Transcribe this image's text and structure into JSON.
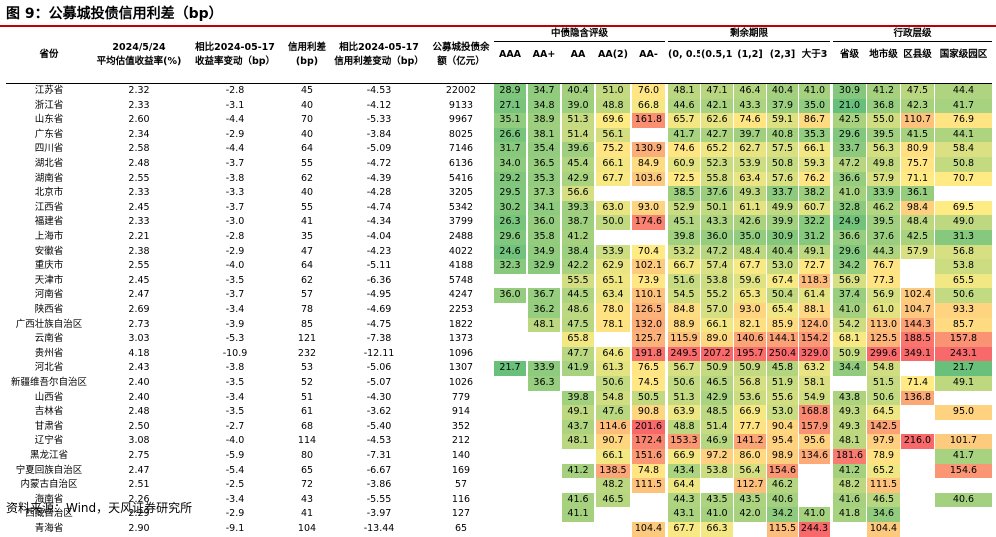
{
  "title": "图 9：公募城投债信用利差（bp）",
  "source": "资料来源：Wind，天风证券研究所",
  "colors": {
    "red": "#f8696b",
    "yellow": "#ffeb84",
    "green": "#63be7b",
    "header_fill": "#ffffff",
    "title_rule": "#c00000"
  },
  "header": {
    "province": "省份",
    "c1_top": "2024/5/24",
    "c1_bottom": "平均估值收益率(%)",
    "c2_top": "相比2024-05-17",
    "c2_bottom": "收益率变动（bp）",
    "c3_top": "信用利差",
    "c3_bottom": "(bp)",
    "c4_top": "相比2024-05-17",
    "c4_bottom": "信用利差变动（bp）",
    "c5_top": "公募城投债余",
    "c5_bottom": "额（亿元）",
    "group_rating": "中债隐含评级",
    "group_term": "剩余期限",
    "group_admin": "行政层级",
    "rating_cols": [
      "AAA",
      "AA+",
      "AA",
      "AA(2)",
      "AA-"
    ],
    "term_cols": [
      "(0, 0.5]",
      "(0.5,1]",
      "(1,2]",
      "(2,3]",
      "大于3"
    ],
    "admin_cols": [
      "省级",
      "地市级",
      "区县级",
      "国家级园区"
    ]
  },
  "rows": [
    {
      "prov": "江苏省",
      "y": "2.32",
      "dy": "-2.8",
      "sp": "45",
      "dsp": "-4.53",
      "bal": "22002",
      "r": [
        "28.9",
        "34.7",
        "40.4",
        "51.0",
        "76.0"
      ],
      "t": [
        "48.1",
        "47.1",
        "46.4",
        "40.4",
        "41.0"
      ],
      "a": [
        "30.9",
        "41.2",
        "47.5",
        "44.4"
      ]
    },
    {
      "prov": "浙江省",
      "y": "2.33",
      "dy": "-3.1",
      "sp": "40",
      "dsp": "-4.12",
      "bal": "9133",
      "r": [
        "27.1",
        "34.8",
        "39.0",
        "48.8",
        "66.8"
      ],
      "t": [
        "44.6",
        "42.1",
        "43.3",
        "37.9",
        "35.0"
      ],
      "a": [
        "21.0",
        "36.8",
        "42.3",
        "41.7"
      ]
    },
    {
      "prov": "山东省",
      "y": "2.60",
      "dy": "-4.4",
      "sp": "70",
      "dsp": "-5.33",
      "bal": "9967",
      "r": [
        "35.1",
        "38.9",
        "51.3",
        "69.6",
        "161.8"
      ],
      "t": [
        "65.7",
        "62.6",
        "74.6",
        "59.1",
        "86.7"
      ],
      "a": [
        "42.5",
        "55.0",
        "110.7",
        "76.9"
      ]
    },
    {
      "prov": "广东省",
      "y": "2.34",
      "dy": "-2.9",
      "sp": "40",
      "dsp": "-3.84",
      "bal": "8025",
      "r": [
        "26.6",
        "38.1",
        "51.4",
        "56.1",
        ""
      ],
      "t": [
        "41.7",
        "42.7",
        "39.7",
        "40.8",
        "35.3"
      ],
      "a": [
        "29.6",
        "39.5",
        "41.5",
        "44.1"
      ]
    },
    {
      "prov": "四川省",
      "y": "2.58",
      "dy": "-4.4",
      "sp": "64",
      "dsp": "-5.09",
      "bal": "7146",
      "r": [
        "31.7",
        "35.4",
        "39.6",
        "75.2",
        "130.9"
      ],
      "t": [
        "74.6",
        "65.2",
        "62.7",
        "57.5",
        "66.1"
      ],
      "a": [
        "33.7",
        "56.3",
        "80.9",
        "58.4"
      ]
    },
    {
      "prov": "湖北省",
      "y": "2.48",
      "dy": "-3.7",
      "sp": "55",
      "dsp": "-4.72",
      "bal": "6136",
      "r": [
        "34.0",
        "36.5",
        "45.4",
        "66.1",
        "84.9"
      ],
      "t": [
        "60.9",
        "52.3",
        "53.9",
        "50.8",
        "59.3"
      ],
      "a": [
        "47.2",
        "49.8",
        "75.7",
        "50.8"
      ]
    },
    {
      "prov": "湖南省",
      "y": "2.55",
      "dy": "-3.8",
      "sp": "62",
      "dsp": "-4.39",
      "bal": "5416",
      "r": [
        "29.2",
        "35.3",
        "42.9",
        "67.7",
        "103.6"
      ],
      "t": [
        "72.5",
        "55.8",
        "63.4",
        "57.6",
        "76.2"
      ],
      "a": [
        "36.6",
        "57.9",
        "71.1",
        "70.7"
      ]
    },
    {
      "prov": "北京市",
      "y": "2.33",
      "dy": "-3.3",
      "sp": "40",
      "dsp": "-4.28",
      "bal": "3205",
      "r": [
        "29.5",
        "37.3",
        "56.6",
        "",
        ""
      ],
      "t": [
        "38.5",
        "37.6",
        "49.3",
        "33.7",
        "38.2"
      ],
      "a": [
        "41.0",
        "33.9",
        "36.1",
        ""
      ]
    },
    {
      "prov": "江西省",
      "y": "2.45",
      "dy": "-3.7",
      "sp": "55",
      "dsp": "-4.74",
      "bal": "5342",
      "r": [
        "30.2",
        "34.1",
        "39.3",
        "63.0",
        "93.0"
      ],
      "t": [
        "52.9",
        "50.1",
        "61.1",
        "49.9",
        "60.7"
      ],
      "a": [
        "32.8",
        "46.2",
        "98.4",
        "69.5"
      ]
    },
    {
      "prov": "福建省",
      "y": "2.33",
      "dy": "-3.0",
      "sp": "41",
      "dsp": "-4.34",
      "bal": "3799",
      "r": [
        "26.3",
        "36.0",
        "38.7",
        "50.0",
        "174.6"
      ],
      "t": [
        "45.1",
        "43.3",
        "42.6",
        "39.9",
        "32.2"
      ],
      "a": [
        "24.9",
        "39.5",
        "48.4",
        "49.0"
      ]
    },
    {
      "prov": "上海市",
      "y": "2.21",
      "dy": "-2.8",
      "sp": "35",
      "dsp": "-4.04",
      "bal": "2488",
      "r": [
        "29.6",
        "35.8",
        "41.2",
        "",
        ""
      ],
      "t": [
        "39.8",
        "36.0",
        "35.0",
        "30.9",
        "31.2"
      ],
      "a": [
        "36.6",
        "37.6",
        "42.5",
        "31.3"
      ]
    },
    {
      "prov": "安徽省",
      "y": "2.38",
      "dy": "-2.9",
      "sp": "47",
      "dsp": "-4.23",
      "bal": "4022",
      "r": [
        "24.6",
        "34.9",
        "38.4",
        "53.9",
        "70.4"
      ],
      "t": [
        "53.2",
        "47.2",
        "48.4",
        "40.4",
        "49.1"
      ],
      "a": [
        "29.6",
        "44.3",
        "57.9",
        "56.8"
      ]
    },
    {
      "prov": "重庆市",
      "y": "2.55",
      "dy": "-4.0",
      "sp": "64",
      "dsp": "-5.11",
      "bal": "4188",
      "r": [
        "32.3",
        "32.9",
        "42.2",
        "62.9",
        "102.1"
      ],
      "t": [
        "66.7",
        "57.4",
        "67.7",
        "53.0",
        "72.7"
      ],
      "a": [
        "34.2",
        "76.7",
        "",
        "53.8"
      ]
    },
    {
      "prov": "天津市",
      "y": "2.45",
      "dy": "-3.5",
      "sp": "62",
      "dsp": "-6.36",
      "bal": "5748",
      "r": [
        "",
        "",
        "55.5",
        "65.1",
        "73.9"
      ],
      "t": [
        "51.6",
        "53.8",
        "59.6",
        "67.4",
        "118.3"
      ],
      "a": [
        "56.9",
        "77.3",
        "",
        "65.5"
      ]
    },
    {
      "prov": "河南省",
      "y": "2.47",
      "dy": "-3.7",
      "sp": "57",
      "dsp": "-4.95",
      "bal": "4247",
      "r": [
        "36.0",
        "36.7",
        "44.5",
        "63.4",
        "110.1"
      ],
      "t": [
        "54.5",
        "55.2",
        "65.3",
        "50.4",
        "61.4"
      ],
      "a": [
        "37.4",
        "56.9",
        "102.4",
        "50.6"
      ]
    },
    {
      "prov": "陕西省",
      "y": "2.69",
      "dy": "-3.4",
      "sp": "78",
      "dsp": "-4.69",
      "bal": "2253",
      "r": [
        "",
        "36.2",
        "48.6",
        "78.0",
        "126.5"
      ],
      "t": [
        "84.8",
        "57.0",
        "93.0",
        "65.4",
        "88.1"
      ],
      "a": [
        "41.0",
        "61.0",
        "104.7",
        "93.3"
      ]
    },
    {
      "prov": "广西壮族自治区",
      "y": "2.73",
      "dy": "-3.9",
      "sp": "85",
      "dsp": "-4.75",
      "bal": "1822",
      "r": [
        "",
        "48.1",
        "47.5",
        "78.1",
        "132.0"
      ],
      "t": [
        "88.9",
        "66.1",
        "82.1",
        "85.9",
        "124.0"
      ],
      "a": [
        "54.2",
        "113.0",
        "144.3",
        "85.7"
      ]
    },
    {
      "prov": "云南省",
      "y": "3.03",
      "dy": "-5.3",
      "sp": "121",
      "dsp": "-7.38",
      "bal": "1373",
      "r": [
        "",
        "",
        "65.8",
        "",
        "125.7"
      ],
      "t": [
        "115.9",
        "89.0",
        "140.6",
        "144.1",
        "154.2"
      ],
      "a": [
        "68.1",
        "125.5",
        "188.5",
        "157.8"
      ]
    },
    {
      "prov": "贵州省",
      "y": "4.18",
      "dy": "-10.9",
      "sp": "232",
      "dsp": "-12.11",
      "bal": "1096",
      "r": [
        "",
        "",
        "47.7",
        "64.6",
        "191.8"
      ],
      "t": [
        "249.5",
        "207.2",
        "195.7",
        "250.4",
        "329.0"
      ],
      "a": [
        "50.9",
        "299.6",
        "349.1",
        "243.1"
      ]
    },
    {
      "prov": "河北省",
      "y": "2.43",
      "dy": "-3.8",
      "sp": "53",
      "dsp": "-5.06",
      "bal": "1307",
      "r": [
        "21.7",
        "33.9",
        "41.9",
        "61.3",
        "76.5"
      ],
      "t": [
        "56.7",
        "50.9",
        "50.9",
        "45.8",
        "63.2"
      ],
      "a": [
        "34.4",
        "54.8",
        "",
        "21.7"
      ]
    },
    {
      "prov": "新疆维吾尔自治区",
      "y": "2.40",
      "dy": "-3.5",
      "sp": "52",
      "dsp": "-5.07",
      "bal": "1026",
      "r": [
        "",
        "36.3",
        "",
        "50.6",
        "74.5"
      ],
      "t": [
        "50.6",
        "46.5",
        "56.8",
        "51.9",
        "58.1"
      ],
      "a": [
        "",
        "51.5",
        "71.4",
        "49.1"
      ]
    },
    {
      "prov": "山西省",
      "y": "2.40",
      "dy": "-3.4",
      "sp": "51",
      "dsp": "-4.30",
      "bal": "779",
      "r": [
        "",
        "",
        "39.8",
        "54.8",
        "50.5"
      ],
      "t": [
        "51.3",
        "42.9",
        "53.6",
        "55.6",
        "54.9"
      ],
      "a": [
        "43.8",
        "50.6",
        "136.8",
        ""
      ]
    },
    {
      "prov": "吉林省",
      "y": "2.48",
      "dy": "-3.5",
      "sp": "61",
      "dsp": "-3.62",
      "bal": "914",
      "r": [
        "",
        "",
        "49.1",
        "47.6",
        "90.8"
      ],
      "t": [
        "63.9",
        "48.5",
        "66.9",
        "53.0",
        "168.8"
      ],
      "a": [
        "49.3",
        "64.5",
        "",
        "95.0"
      ]
    },
    {
      "prov": "甘肃省",
      "y": "2.50",
      "dy": "-2.7",
      "sp": "68",
      "dsp": "-5.40",
      "bal": "352",
      "r": [
        "",
        "",
        "43.7",
        "114.6",
        "201.6"
      ],
      "t": [
        "48.8",
        "51.4",
        "77.7",
        "90.4",
        "157.9"
      ],
      "a": [
        "49.3",
        "142.5",
        "",
        ""
      ]
    },
    {
      "prov": "辽宁省",
      "y": "3.08",
      "dy": "-4.0",
      "sp": "114",
      "dsp": "-4.53",
      "bal": "212",
      "r": [
        "",
        "",
        "48.1",
        "90.7",
        "172.4"
      ],
      "t": [
        "153.3",
        "46.9",
        "141.2",
        "95.4",
        "95.6"
      ],
      "a": [
        "48.1",
        "97.9",
        "216.0",
        "101.7"
      ]
    },
    {
      "prov": "黑龙江省",
      "y": "2.75",
      "dy": "-5.9",
      "sp": "80",
      "dsp": "-7.31",
      "bal": "140",
      "r": [
        "",
        "",
        "",
        "66.1",
        "151.6"
      ],
      "t": [
        "66.9",
        "97.2",
        "86.0",
        "98.9",
        "134.6"
      ],
      "a": [
        "181.6",
        "78.9",
        "",
        "41.7"
      ]
    },
    {
      "prov": "宁夏回族自治区",
      "y": "2.47",
      "dy": "-5.4",
      "sp": "65",
      "dsp": "-6.67",
      "bal": "169",
      "r": [
        "",
        "",
        "41.2",
        "138.5",
        "74.8"
      ],
      "t": [
        "43.4",
        "53.8",
        "56.4",
        "154.6",
        ""
      ],
      "a": [
        "41.2",
        "65.2",
        "",
        "154.6"
      ]
    },
    {
      "prov": "内蒙古自治区",
      "y": "2.51",
      "dy": "-2.5",
      "sp": "72",
      "dsp": "-3.86",
      "bal": "57",
      "r": [
        "",
        "",
        "",
        "48.2",
        "111.5"
      ],
      "t": [
        "64.4",
        "",
        "112.7",
        "46.2",
        ""
      ],
      "a": [
        "48.2",
        "111.5",
        "",
        ""
      ]
    },
    {
      "prov": "海南省",
      "y": "2.26",
      "dy": "-3.4",
      "sp": "43",
      "dsp": "-5.55",
      "bal": "116",
      "r": [
        "",
        "",
        "41.6",
        "46.5",
        ""
      ],
      "t": [
        "44.3",
        "43.5",
        "43.5",
        "40.6",
        ""
      ],
      "a": [
        "41.6",
        "46.5",
        "",
        "40.6"
      ]
    },
    {
      "prov": "西藏自治区",
      "y": "2.29",
      "dy": "-2.9",
      "sp": "41",
      "dsp": "-3.97",
      "bal": "127",
      "r": [
        "",
        "",
        "41.1",
        "",
        ""
      ],
      "t": [
        "43.1",
        "41.0",
        "42.0",
        "34.2",
        "41.0"
      ],
      "a": [
        "41.8",
        "34.6",
        "",
        ""
      ]
    },
    {
      "prov": "青海省",
      "y": "2.90",
      "dy": "-9.1",
      "sp": "104",
      "dsp": "-13.44",
      "bal": "65",
      "r": [
        "",
        "",
        "",
        "",
        "104.4"
      ],
      "t": [
        "67.7",
        "66.3",
        "",
        "115.5",
        "244.3"
      ],
      "a": [
        "",
        "104.4",
        "",
        ""
      ]
    }
  ]
}
